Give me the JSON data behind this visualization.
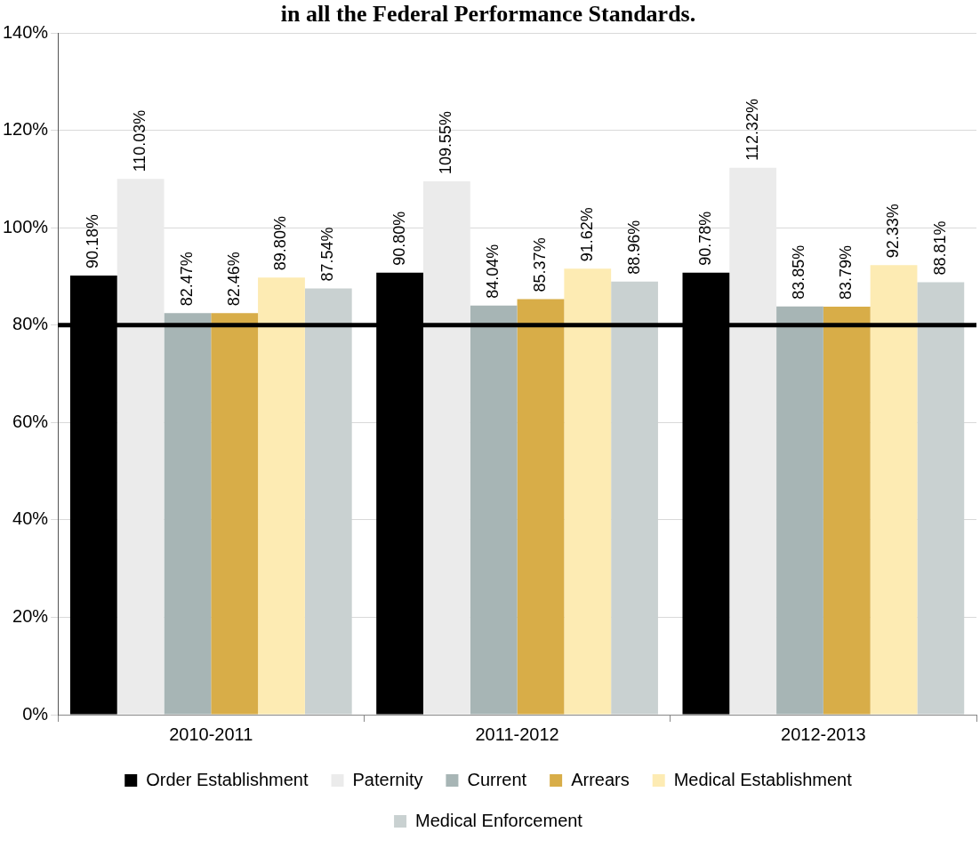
{
  "chart_data": {
    "type": "bar",
    "title": "in all the Federal Performance Standards.",
    "categories": [
      "2010-2011",
      "2011-2012",
      "2012-2013"
    ],
    "series": [
      {
        "name": "Order Establishment",
        "color": "#000000",
        "values": [
          90.18,
          90.8,
          90.78
        ],
        "value_labels": [
          "90.18%",
          "90.80%",
          "90.78%"
        ]
      },
      {
        "name": "Paternity",
        "color": "#ebebeb",
        "values": [
          110.03,
          109.55,
          112.32
        ],
        "value_labels": [
          "110.03%",
          "109.55%",
          "112.32%"
        ]
      },
      {
        "name": "Current",
        "color": "#a7b5b5",
        "values": [
          82.47,
          84.04,
          83.85
        ],
        "value_labels": [
          "82.47%",
          "84.04%",
          "83.85%"
        ]
      },
      {
        "name": "Arrears",
        "color": "#d8ad48",
        "values": [
          82.46,
          85.37,
          83.79
        ],
        "value_labels": [
          "82.46%",
          "85.37%",
          "83.79%"
        ]
      },
      {
        "name": "Medical Establishment",
        "color": "#fdebb3",
        "values": [
          89.8,
          91.62,
          92.33
        ],
        "value_labels": [
          "89.80%",
          "91.62%",
          "92.33%"
        ]
      },
      {
        "name": "Medical Enforcement",
        "color": "#c9d1d1",
        "values": [
          87.54,
          88.96,
          88.81
        ],
        "value_labels": [
          "87.54%",
          "88.96%",
          "88.81%"
        ]
      }
    ],
    "ylim": [
      0,
      140
    ],
    "yticks": [
      {
        "value": 0,
        "label": "0%"
      },
      {
        "value": 20,
        "label": "20%"
      },
      {
        "value": 40,
        "label": "40%"
      },
      {
        "value": 60,
        "label": "60%"
      },
      {
        "value": 80,
        "label": "80%"
      },
      {
        "value": 100,
        "label": "100%"
      },
      {
        "value": 120,
        "label": "120%"
      },
      {
        "value": 140,
        "label": "140%"
      }
    ],
    "grid": "y",
    "legend": "bottom",
    "ref_lines": [
      {
        "axis": "y",
        "value": 80,
        "color": "#000000"
      }
    ]
  }
}
